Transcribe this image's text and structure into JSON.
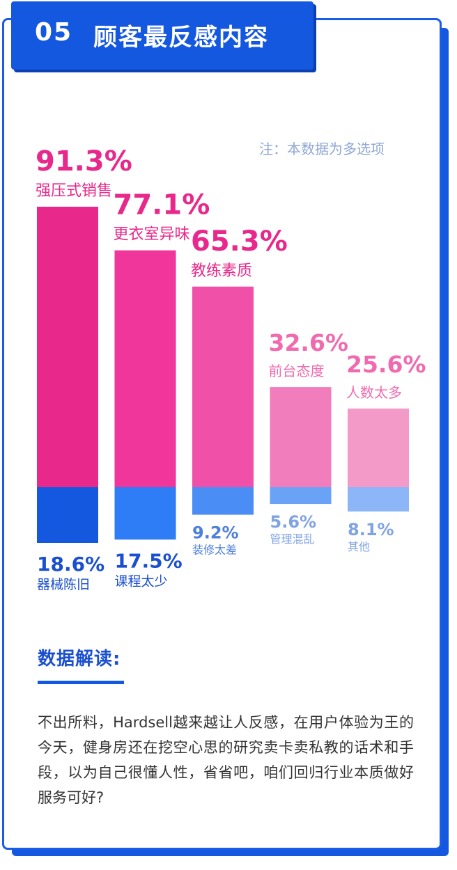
{
  "header": {
    "number": "05",
    "title": "顾客最反感内容"
  },
  "note": "注：本数据为多选项",
  "chart_data": {
    "type": "bar",
    "categories": [
      "强压式销售",
      "更衣室异味",
      "教练素质",
      "前台态度",
      "人数太多"
    ],
    "values": [
      91.3,
      77.1,
      65.3,
      32.6,
      25.6
    ],
    "value_labels": [
      "91.3%",
      "77.1%",
      "65.3%",
      "32.6%",
      "25.6%"
    ],
    "bar_colors": [
      "#e8288a",
      "#f0369a",
      "#f050a8",
      "#f27dbc",
      "#f49ac8"
    ],
    "lower_categories": [
      "器械陈旧",
      "课程太少",
      "装修太差",
      "管理混乱",
      "其他"
    ],
    "lower_values": [
      18.6,
      17.5,
      9.2,
      5.6,
      8.1
    ],
    "lower_value_labels": [
      "18.6%",
      "17.5%",
      "9.2%",
      "5.6%",
      "8.1%"
    ],
    "lower_colors": [
      "#1558e0",
      "#2e7cf6",
      "#4a8ef5",
      "#6aa3f5",
      "#8cb6f7"
    ],
    "value_label_colors": [
      "#e8288a",
      "#e8288a",
      "#e8288a",
      "#f06aaf",
      "#f06aaf"
    ],
    "lower_label_colors": [
      "#1a4fcf",
      "#1a4fcf",
      "#4d7fdc",
      "#7fa3e3",
      "#7fa3e3"
    ]
  },
  "section": {
    "title": "数据解读:",
    "paragraph": "不出所料，Hardsell越来越让人反感，在用户体验为王的今天，健身房还在挖空心思的研究卖卡卖私教的话术和手段，以为自己很懂人性，省省吧，咱们回归行业本质做好服务可好?"
  }
}
